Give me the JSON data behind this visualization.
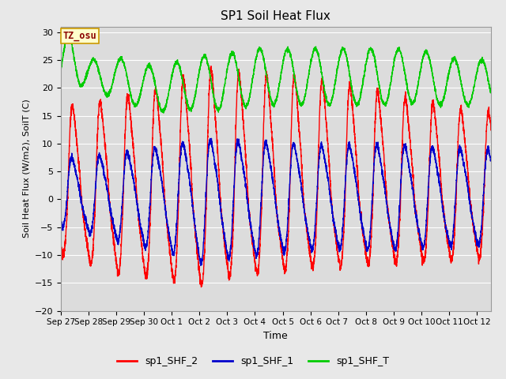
{
  "title": "SP1 Soil Heat Flux",
  "xlabel": "Time",
  "ylabel": "Soil Heat Flux (W/m2), SoilT (C)",
  "ylim": [
    -20,
    31
  ],
  "yticks": [
    -20,
    -15,
    -10,
    -5,
    0,
    5,
    10,
    15,
    20,
    25,
    30
  ],
  "bg_color": "#dcdcdc",
  "fig_color": "#e8e8e8",
  "line_colors": {
    "shf2": "#ff0000",
    "shf1": "#0000cc",
    "shft": "#00cc00"
  },
  "legend_labels": [
    "sp1_SHF_2",
    "sp1_SHF_1",
    "sp1_SHF_T"
  ],
  "tz_label": "TZ_osu",
  "x_tick_labels": [
    "Sep 27",
    "Sep 28",
    "Sep 29",
    "Sep 30",
    "Oct 1",
    "Oct 2",
    "Oct 3",
    "Oct 4",
    "Oct 5",
    "Oct 6",
    "Oct 7 ",
    "Oct 8",
    "Oct 9",
    "Oct 10",
    "Oct 11",
    "Oct 12"
  ],
  "n_days": 15.5,
  "points_per_day": 288
}
